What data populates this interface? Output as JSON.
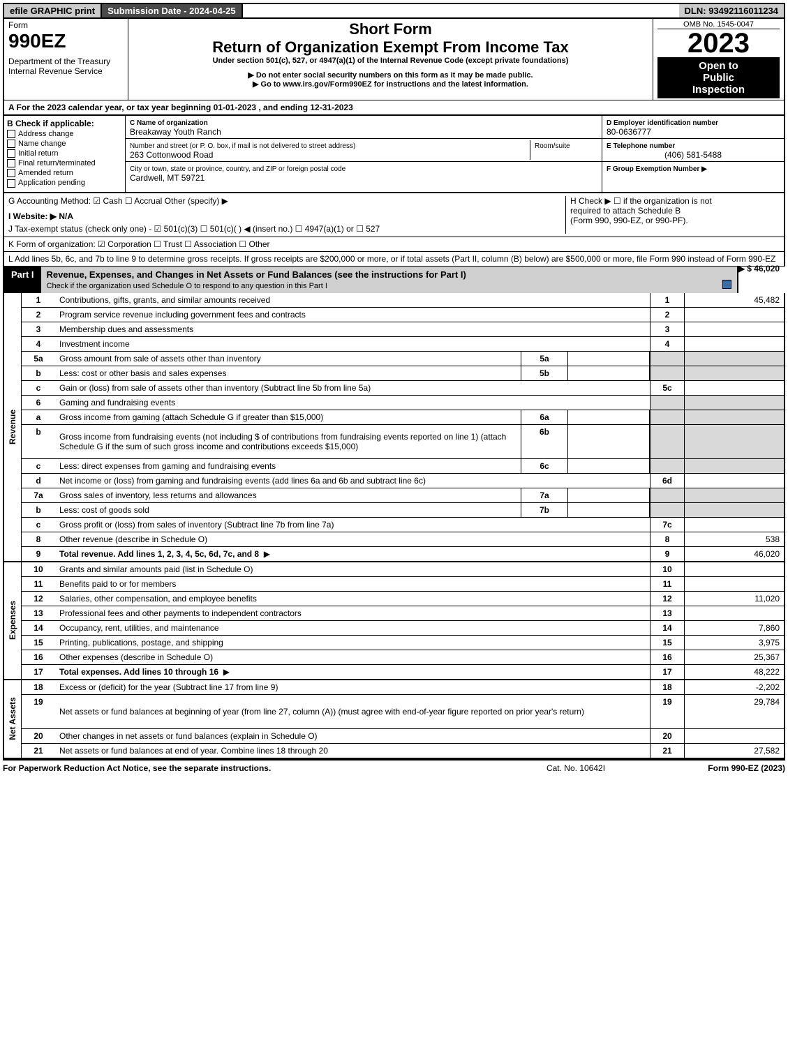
{
  "topbar": {
    "efile": "efile GRAPHIC print",
    "subdate": "Submission Date - 2024-04-25",
    "dln": "DLN: 93492116011234"
  },
  "header": {
    "form_label": "Form",
    "form_num": "990EZ",
    "dept": "Department of the Treasury",
    "irs": "Internal Revenue Service",
    "short_form": "Short Form",
    "title": "Return of Organization Exempt From Income Tax",
    "subtitle": "Under section 501(c), 527, or 4947(a)(1) of the Internal Revenue Code (except private foundations)",
    "warn": "▶ Do not enter social security numbers on this form as it may be made public.",
    "goto": "▶ Go to www.irs.gov/Form990EZ for instructions and the latest information.",
    "omb": "OMB No. 1545-0047",
    "year": "2023",
    "inspect1": "Open to",
    "inspect2": "Public",
    "inspect3": "Inspection"
  },
  "A": "A  For the 2023 calendar year, or tax year beginning 01-01-2023 , and ending 12-31-2023",
  "B": {
    "label": "B  Check if applicable:",
    "opts": [
      "Address change",
      "Name change",
      "Initial return",
      "Final return/terminated",
      "Amended return",
      "Application pending"
    ]
  },
  "C": {
    "name_label": "C Name of organization",
    "name": "Breakaway Youth Ranch",
    "addr_label": "Number and street (or P. O. box, if mail is not delivered to street address)",
    "room_label": "Room/suite",
    "addr": "263 Cottonwood Road",
    "city_label": "City or town, state or province, country, and ZIP or foreign postal code",
    "city": "Cardwell, MT  59721"
  },
  "D": {
    "label": "D Employer identification number",
    "val": "80-0636777"
  },
  "E": {
    "label": "E Telephone number",
    "val": "(406) 581-5488"
  },
  "F": {
    "label": "F Group Exemption Number  ▶"
  },
  "G": "G Accounting Method:  ☑ Cash  ☐ Accrual   Other (specify) ▶",
  "H": {
    "l1": "H  Check ▶  ☐  if the organization is not",
    "l2": "required to attach Schedule B",
    "l3": "(Form 990, 990-EZ, or 990-PF)."
  },
  "I": "I Website: ▶ N/A",
  "J": "J Tax-exempt status (check only one) - ☑ 501(c)(3) ☐ 501(c)(  ) ◀ (insert no.) ☐ 4947(a)(1) or ☐ 527",
  "K": "K Form of organization:  ☑ Corporation   ☐ Trust   ☐ Association   ☐ Other",
  "L": {
    "text": "L Add lines 5b, 6c, and 7b to line 9 to determine gross receipts. If gross receipts are $200,000 or more, or if total assets (Part II, column (B) below) are $500,000 or more, file Form 990 instead of Form 990-EZ",
    "val": "▶ $ 46,020"
  },
  "part1": {
    "label": "Part I",
    "title": "Revenue, Expenses, and Changes in Net Assets or Fund Balances (see the instructions for Part I)",
    "sub": "Check if the organization used Schedule O to respond to any question in this Part I"
  },
  "revenue": [
    {
      "n": "1",
      "d": "Contributions, gifts, grants, and similar amounts received",
      "ref": "1",
      "v": "45,482"
    },
    {
      "n": "2",
      "d": "Program service revenue including government fees and contracts",
      "ref": "2",
      "v": ""
    },
    {
      "n": "3",
      "d": "Membership dues and assessments",
      "ref": "3",
      "v": ""
    },
    {
      "n": "4",
      "d": "Investment income",
      "ref": "4",
      "v": ""
    },
    {
      "n": "5a",
      "d": "Gross amount from sale of assets other than inventory",
      "sub": "5a",
      "subv": "",
      "gray": true
    },
    {
      "n": "b",
      "d": "Less: cost or other basis and sales expenses",
      "sub": "5b",
      "subv": "",
      "gray": true
    },
    {
      "n": "c",
      "d": "Gain or (loss) from sale of assets other than inventory (Subtract line 5b from line 5a)",
      "ref": "5c",
      "v": ""
    },
    {
      "n": "6",
      "d": "Gaming and fundraising events",
      "nobox": true
    },
    {
      "n": "a",
      "d": "Gross income from gaming (attach Schedule G if greater than $15,000)",
      "sub": "6a",
      "subv": "",
      "gray": true
    },
    {
      "n": "b",
      "d": "Gross income from fundraising events (not including $                   of contributions from fundraising events reported on line 1) (attach Schedule G if the sum of such gross income and contributions exceeds $15,000)",
      "sub": "6b",
      "subv": "",
      "gray": true,
      "tall": true
    },
    {
      "n": "c",
      "d": "Less: direct expenses from gaming and fundraising events",
      "sub": "6c",
      "subv": "",
      "gray": true
    },
    {
      "n": "d",
      "d": "Net income or (loss) from gaming and fundraising events (add lines 6a and 6b and subtract line 6c)",
      "ref": "6d",
      "v": ""
    },
    {
      "n": "7a",
      "d": "Gross sales of inventory, less returns and allowances",
      "sub": "7a",
      "subv": "",
      "gray": true
    },
    {
      "n": "b",
      "d": "Less: cost of goods sold",
      "sub": "7b",
      "subv": "",
      "gray": true
    },
    {
      "n": "c",
      "d": "Gross profit or (loss) from sales of inventory (Subtract line 7b from line 7a)",
      "ref": "7c",
      "v": ""
    },
    {
      "n": "8",
      "d": "Other revenue (describe in Schedule O)",
      "ref": "8",
      "v": "538"
    },
    {
      "n": "9",
      "d": "Total revenue. Add lines 1, 2, 3, 4, 5c, 6d, 7c, and 8",
      "ref": "9",
      "v": "46,020",
      "bold": true,
      "arrow": true
    }
  ],
  "expenses": [
    {
      "n": "10",
      "d": "Grants and similar amounts paid (list in Schedule O)",
      "ref": "10",
      "v": ""
    },
    {
      "n": "11",
      "d": "Benefits paid to or for members",
      "ref": "11",
      "v": ""
    },
    {
      "n": "12",
      "d": "Salaries, other compensation, and employee benefits",
      "ref": "12",
      "v": "11,020"
    },
    {
      "n": "13",
      "d": "Professional fees and other payments to independent contractors",
      "ref": "13",
      "v": ""
    },
    {
      "n": "14",
      "d": "Occupancy, rent, utilities, and maintenance",
      "ref": "14",
      "v": "7,860"
    },
    {
      "n": "15",
      "d": "Printing, publications, postage, and shipping",
      "ref": "15",
      "v": "3,975"
    },
    {
      "n": "16",
      "d": "Other expenses (describe in Schedule O)",
      "ref": "16",
      "v": "25,367"
    },
    {
      "n": "17",
      "d": "Total expenses. Add lines 10 through 16",
      "ref": "17",
      "v": "48,222",
      "bold": true,
      "arrow": true
    }
  ],
  "netassets": [
    {
      "n": "18",
      "d": "Excess or (deficit) for the year (Subtract line 17 from line 9)",
      "ref": "18",
      "v": "-2,202"
    },
    {
      "n": "19",
      "d": "Net assets or fund balances at beginning of year (from line 27, column (A)) (must agree with end-of-year figure reported on prior year's return)",
      "ref": "19",
      "v": "29,784",
      "tall": true
    },
    {
      "n": "20",
      "d": "Other changes in net assets or fund balances (explain in Schedule O)",
      "ref": "20",
      "v": ""
    },
    {
      "n": "21",
      "d": "Net assets or fund balances at end of year. Combine lines 18 through 20",
      "ref": "21",
      "v": "27,582"
    }
  ],
  "footer": {
    "left": "For Paperwork Reduction Act Notice, see the separate instructions.",
    "mid": "Cat. No. 10642I",
    "right": "Form 990-EZ (2023)"
  },
  "vlabels": {
    "rev": "Revenue",
    "exp": "Expenses",
    "na": "Net Assets"
  }
}
